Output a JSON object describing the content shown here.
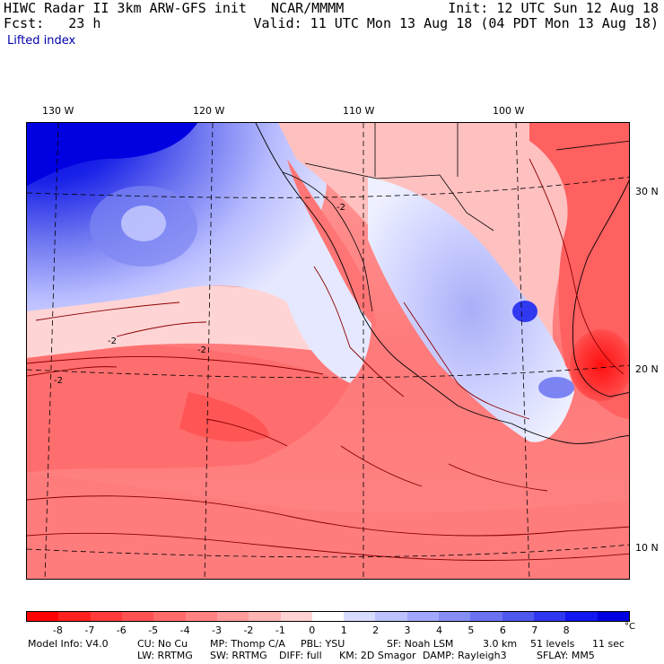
{
  "header": {
    "title_left": "HIWC Radar II 3km ARW-GFS init   NCAR/MMMM",
    "fcst_left": "Fcst:   23 h",
    "init_right": "Init: 12 UTC Sun 12 Aug 18",
    "valid_right": "Valid: 11 UTC Mon 13 Aug 18 (04 PDT Mon 13 Aug 18)",
    "field_name": "Lifted index"
  },
  "map": {
    "longitude_labels": [
      "130 W",
      "120 W",
      "110 W",
      "100 W"
    ],
    "latitude_labels": [
      "30 N",
      "20 N",
      "10 N"
    ],
    "contour_labels": [
      "-2",
      "-2",
      "-2",
      "-2"
    ]
  },
  "colorbar": {
    "ticks": [
      "-8",
      "-7",
      "-6",
      "-5",
      "-4",
      "-3",
      "-2",
      "-1",
      "0",
      "1",
      "2",
      "3",
      "4",
      "5",
      "6",
      "7",
      "8"
    ],
    "unit": "°C",
    "colors": [
      "#ff0000",
      "#ff2020",
      "#ff3b3b",
      "#ff5252",
      "#ff6a6a",
      "#ff8282",
      "#ff9b9b",
      "#ffb4b4",
      "#ffd3d3",
      "#ffffff",
      "#d8dcff",
      "#bcc2ff",
      "#a2a8ff",
      "#868ef4",
      "#6b72f0",
      "#4f58ee",
      "#3037f0",
      "#1117f0",
      "#0000e0"
    ]
  },
  "footer": {
    "line1": [
      "Model Info: V4.0",
      "CU: No Cu",
      "MP: Thomp C/A",
      "PBL: YSU",
      "SF: Noah LSM",
      "3.0 km",
      "51 levels",
      "11 sec"
    ],
    "line2": [
      "LW: RRTMG",
      "SW: RRTMG",
      "DIFF: full",
      "KM: 2D Smagor",
      "DAMP: Rayleigh3",
      "SFLAY: MM5"
    ]
  }
}
